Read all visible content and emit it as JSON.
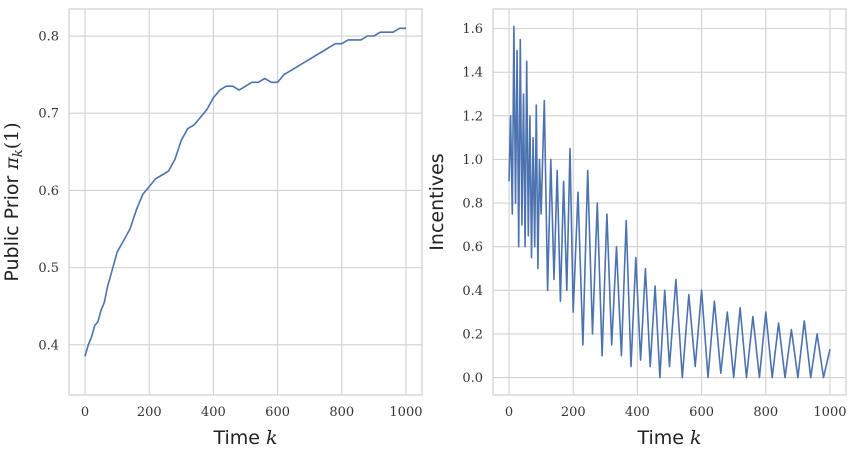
{
  "chart_data": [
    {
      "type": "line",
      "title": "",
      "xlabel": "Time k",
      "ylabel": "Public Prior π_k(1)",
      "xlim": [
        -50,
        1050
      ],
      "ylim": [
        0.335,
        0.835
      ],
      "xticks": [
        "0",
        "200",
        "400",
        "600",
        "800",
        "1000"
      ],
      "yticks": [
        "0.4",
        "0.5",
        "0.6",
        "0.7",
        "0.8"
      ],
      "grid": true,
      "series": [
        {
          "color": "#4c72b0",
          "x": [
            0,
            10,
            20,
            30,
            40,
            50,
            60,
            70,
            80,
            90,
            100,
            120,
            140,
            160,
            180,
            200,
            220,
            240,
            260,
            280,
            300,
            320,
            340,
            360,
            380,
            400,
            420,
            440,
            460,
            480,
            500,
            520,
            540,
            560,
            580,
            600,
            620,
            640,
            660,
            680,
            700,
            720,
            740,
            760,
            780,
            800,
            820,
            840,
            860,
            880,
            900,
            920,
            940,
            960,
            980,
            1000
          ],
          "y": [
            0.385,
            0.4,
            0.41,
            0.425,
            0.43,
            0.445,
            0.455,
            0.475,
            0.49,
            0.505,
            0.52,
            0.535,
            0.55,
            0.575,
            0.595,
            0.605,
            0.615,
            0.62,
            0.625,
            0.64,
            0.665,
            0.68,
            0.685,
            0.695,
            0.705,
            0.72,
            0.73,
            0.735,
            0.735,
            0.73,
            0.735,
            0.74,
            0.74,
            0.745,
            0.74,
            0.74,
            0.75,
            0.755,
            0.76,
            0.765,
            0.77,
            0.775,
            0.78,
            0.785,
            0.79,
            0.79,
            0.795,
            0.795,
            0.795,
            0.8,
            0.8,
            0.805,
            0.805,
            0.805,
            0.81,
            0.81
          ]
        }
      ]
    },
    {
      "type": "line",
      "title": "",
      "xlabel": "Time k",
      "ylabel": "Incentives",
      "xlim": [
        -50,
        1050
      ],
      "ylim": [
        -0.08,
        1.69
      ],
      "xticks": [
        "0",
        "200",
        "400",
        "600",
        "800",
        "1000"
      ],
      "yticks": [
        "0.0",
        "0.2",
        "0.4",
        "0.6",
        "0.8",
        "1.0",
        "1.2",
        "1.4",
        "1.6"
      ],
      "grid": true,
      "series": [
        {
          "color": "#4c72b0",
          "x": [
            0,
            5,
            10,
            15,
            20,
            25,
            30,
            35,
            40,
            45,
            50,
            55,
            60,
            65,
            70,
            75,
            80,
            85,
            90,
            95,
            100,
            110,
            120,
            130,
            140,
            150,
            160,
            170,
            180,
            190,
            200,
            215,
            230,
            245,
            260,
            275,
            290,
            305,
            320,
            335,
            350,
            365,
            380,
            395,
            410,
            425,
            440,
            455,
            470,
            485,
            500,
            520,
            540,
            560,
            580,
            600,
            620,
            640,
            660,
            680,
            700,
            720,
            740,
            760,
            780,
            800,
            820,
            840,
            860,
            880,
            900,
            920,
            940,
            960,
            980,
            1000
          ],
          "y": [
            0.9,
            1.2,
            0.75,
            1.61,
            0.8,
            1.5,
            0.6,
            1.55,
            0.7,
            1.3,
            0.6,
            1.45,
            0.65,
            1.2,
            0.55,
            1.1,
            0.6,
            1.25,
            0.5,
            1.0,
            0.75,
            1.27,
            0.4,
            1.0,
            0.45,
            0.95,
            0.35,
            0.9,
            0.4,
            1.05,
            0.3,
            0.85,
            0.15,
            0.95,
            0.2,
            0.8,
            0.1,
            0.75,
            0.15,
            0.6,
            0.1,
            0.72,
            0.05,
            0.55,
            0.08,
            0.5,
            0.05,
            0.42,
            0.0,
            0.4,
            0.05,
            0.45,
            0.0,
            0.38,
            0.05,
            0.4,
            0.0,
            0.35,
            0.02,
            0.3,
            0.0,
            0.32,
            0.0,
            0.28,
            0.0,
            0.3,
            0.0,
            0.25,
            0.0,
            0.22,
            0.0,
            0.26,
            0.0,
            0.2,
            0.0,
            0.13
          ]
        }
      ]
    }
  ]
}
